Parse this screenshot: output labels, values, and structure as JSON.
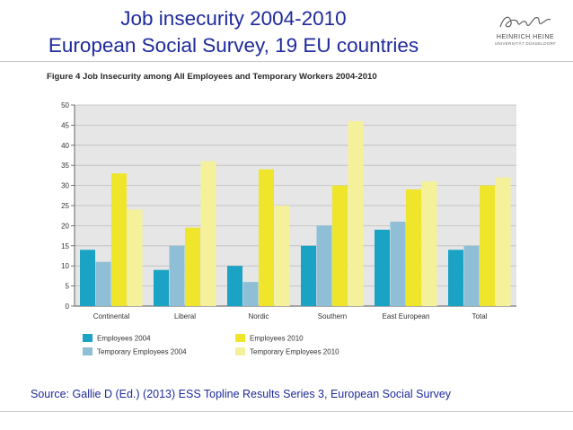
{
  "slide": {
    "title_line1": "Job insecurity 2004-2010",
    "title_line2": "European Social Survey, 19 EU countries",
    "source": "Source: Gallie D (Ed.) (2013) ESS Topline Results Series 3, European Social Survey"
  },
  "logo": {
    "name": "HEINRICH HEINE",
    "sub": "UNIVERSITÄT DÜSSELDORF"
  },
  "colors": {
    "title": "#1f2a9c",
    "grid_bg": "#e6e6e6",
    "gridline": "#bdbdbd"
  },
  "chart_data": {
    "type": "bar",
    "title": "Figure 4 Job Insecurity among All Employees and Temporary Workers 2004-2010",
    "xlabel": "",
    "ylabel": "",
    "ylim": [
      0,
      50
    ],
    "yticks": [
      0,
      5,
      10,
      15,
      20,
      25,
      30,
      35,
      40,
      45,
      50
    ],
    "categories": [
      "Continental",
      "Liberal",
      "Nordic",
      "Southern",
      "East European",
      "Total"
    ],
    "series": [
      {
        "name": "Employees 2004",
        "color": "#1aa3c4",
        "values": [
          14,
          9,
          10,
          15,
          19,
          14
        ]
      },
      {
        "name": "Temporary Employees 2004",
        "color": "#8ebfd6",
        "values": [
          11,
          15,
          6,
          20,
          21,
          15
        ]
      },
      {
        "name": "Employees 2010",
        "color": "#efe52a",
        "values": [
          33,
          19.5,
          34,
          30,
          29,
          30
        ]
      },
      {
        "name": "Temporary Employees 2010",
        "color": "#f5f19a",
        "values": [
          24,
          36,
          25,
          46,
          31,
          32
        ]
      }
    ],
    "legend_position": "bottom",
    "grid": true
  }
}
